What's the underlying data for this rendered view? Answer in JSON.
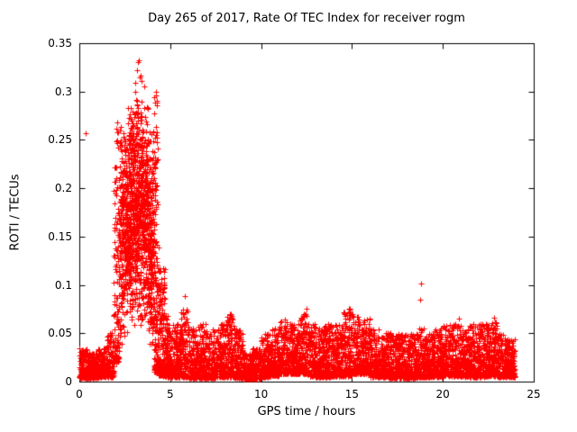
{
  "colors": {
    "background": "#ffffff",
    "axis": "#000000",
    "text": "#000000",
    "points": "#ff0000"
  },
  "chart_data": {
    "type": "scatter",
    "title": "Day 265 of 2017, Rate Of TEC Index for receiver rogm",
    "xlabel": "GPS time / hours",
    "ylabel": "ROTI / TECUs",
    "xlim": [
      0,
      25
    ],
    "ylim": [
      0,
      0.35
    ],
    "grid": false,
    "legend": "none",
    "x_ticks": {
      "values": [
        0,
        5,
        10,
        15,
        20,
        25
      ],
      "labels": [
        "0",
        "5",
        "10",
        "15",
        "20",
        "25"
      ]
    },
    "y_ticks": {
      "values": [
        0,
        0.05,
        0.1,
        0.15,
        0.2,
        0.25,
        0.3,
        0.35
      ],
      "labels": [
        "0",
        "0.05",
        "0.1",
        "0.15",
        "0.2",
        "0.25",
        "0.3",
        "0.35"
      ]
    },
    "marker": {
      "shape": "plus",
      "color": "#ff0000",
      "size": 5
    },
    "seed": 20170265,
    "envelope_bins": [
      [
        0.0,
        0.5,
        140,
        0.004,
        0.035,
        "low2"
      ],
      [
        0.5,
        1.0,
        140,
        0.004,
        0.03,
        "low2"
      ],
      [
        1.0,
        1.5,
        140,
        0.005,
        0.035,
        "low2"
      ],
      [
        1.5,
        1.9,
        110,
        0.005,
        0.05,
        "low2"
      ],
      [
        1.9,
        2.2,
        130,
        0.02,
        0.26,
        "low2"
      ],
      [
        2.2,
        2.5,
        170,
        0.03,
        0.27,
        "tri"
      ],
      [
        2.5,
        2.8,
        210,
        0.04,
        0.295,
        "tri"
      ],
      [
        2.8,
        3.1,
        230,
        0.05,
        0.31,
        "tri"
      ],
      [
        3.1,
        3.45,
        250,
        0.05,
        0.33,
        "tri"
      ],
      [
        3.45,
        3.8,
        230,
        0.04,
        0.3,
        "tri"
      ],
      [
        3.8,
        4.1,
        190,
        0.02,
        0.27,
        "tri"
      ],
      [
        4.1,
        4.35,
        150,
        0.01,
        0.3,
        "low2"
      ],
      [
        4.35,
        4.7,
        150,
        0.006,
        0.12,
        "low2"
      ],
      [
        4.7,
        5.0,
        130,
        0.005,
        0.07,
        "low2"
      ],
      [
        5.0,
        5.5,
        150,
        0.005,
        0.06,
        "low2"
      ],
      [
        5.5,
        6.0,
        150,
        0.005,
        0.075,
        "low2"
      ],
      [
        6.0,
        6.5,
        150,
        0.004,
        0.055,
        "low2"
      ],
      [
        6.5,
        7.0,
        150,
        0.004,
        0.06,
        "low2"
      ],
      [
        7.0,
        7.5,
        150,
        0.004,
        0.055,
        "low2"
      ],
      [
        7.5,
        8.0,
        150,
        0.005,
        0.06,
        "low2"
      ],
      [
        8.0,
        8.5,
        150,
        0.005,
        0.07,
        "low2"
      ],
      [
        8.5,
        9.0,
        150,
        0.004,
        0.055,
        "low2"
      ],
      [
        9.0,
        9.5,
        150,
        0.003,
        0.03,
        "low2"
      ],
      [
        9.5,
        10.0,
        150,
        0.003,
        0.035,
        "low2"
      ],
      [
        10.0,
        10.5,
        150,
        0.005,
        0.05,
        "low2"
      ],
      [
        10.5,
        11.0,
        150,
        0.006,
        0.055,
        "low2"
      ],
      [
        11.0,
        11.5,
        150,
        0.008,
        0.065,
        "low2"
      ],
      [
        11.5,
        12.0,
        150,
        0.008,
        0.06,
        "low2"
      ],
      [
        12.0,
        12.5,
        150,
        0.008,
        0.07,
        "low2"
      ],
      [
        12.5,
        13.0,
        150,
        0.006,
        0.06,
        "low2"
      ],
      [
        13.0,
        13.5,
        150,
        0.005,
        0.055,
        "low2"
      ],
      [
        13.5,
        14.0,
        150,
        0.005,
        0.06,
        "low2"
      ],
      [
        14.0,
        14.5,
        150,
        0.006,
        0.06,
        "low2"
      ],
      [
        14.5,
        15.0,
        150,
        0.006,
        0.075,
        "low2"
      ],
      [
        15.0,
        15.5,
        150,
        0.008,
        0.07,
        "low2"
      ],
      [
        15.5,
        16.0,
        150,
        0.008,
        0.065,
        "low2"
      ],
      [
        16.0,
        16.5,
        150,
        0.005,
        0.055,
        "low2"
      ],
      [
        16.5,
        17.0,
        150,
        0.005,
        0.05,
        "low2"
      ],
      [
        17.0,
        17.5,
        150,
        0.004,
        0.05,
        "low2"
      ],
      [
        17.5,
        18.0,
        150,
        0.004,
        0.05,
        "low2"
      ],
      [
        18.0,
        18.5,
        150,
        0.004,
        0.05,
        "low2"
      ],
      [
        18.5,
        19.0,
        150,
        0.005,
        0.055,
        "low2"
      ],
      [
        19.0,
        19.5,
        150,
        0.005,
        0.05,
        "low2"
      ],
      [
        19.5,
        20.0,
        150,
        0.005,
        0.055,
        "low2"
      ],
      [
        20.0,
        20.5,
        150,
        0.006,
        0.06,
        "low2"
      ],
      [
        20.5,
        21.0,
        150,
        0.006,
        0.06,
        "low2"
      ],
      [
        21.0,
        21.5,
        150,
        0.005,
        0.055,
        "low2"
      ],
      [
        21.5,
        22.0,
        150,
        0.005,
        0.06,
        "low2"
      ],
      [
        22.0,
        22.5,
        150,
        0.005,
        0.06,
        "low2"
      ],
      [
        22.5,
        23.0,
        150,
        0.006,
        0.065,
        "low2"
      ],
      [
        23.0,
        23.5,
        150,
        0.005,
        0.05,
        "low2"
      ],
      [
        23.5,
        23.95,
        150,
        0.005,
        0.045,
        "low2"
      ]
    ],
    "outliers": [
      [
        0.35,
        0.257
      ],
      [
        2.05,
        0.262
      ],
      [
        2.1,
        0.268
      ],
      [
        3.15,
        0.322
      ],
      [
        3.2,
        0.33
      ],
      [
        3.25,
        0.332
      ],
      [
        3.3,
        0.315
      ],
      [
        3.55,
        0.305
      ],
      [
        4.2,
        0.296
      ],
      [
        4.22,
        0.3
      ],
      [
        5.8,
        0.088
      ],
      [
        8.35,
        0.07
      ],
      [
        12.5,
        0.075
      ],
      [
        14.9,
        0.075
      ],
      [
        18.75,
        0.085
      ],
      [
        18.8,
        0.101
      ],
      [
        20.9,
        0.065
      ],
      [
        22.8,
        0.066
      ]
    ]
  }
}
